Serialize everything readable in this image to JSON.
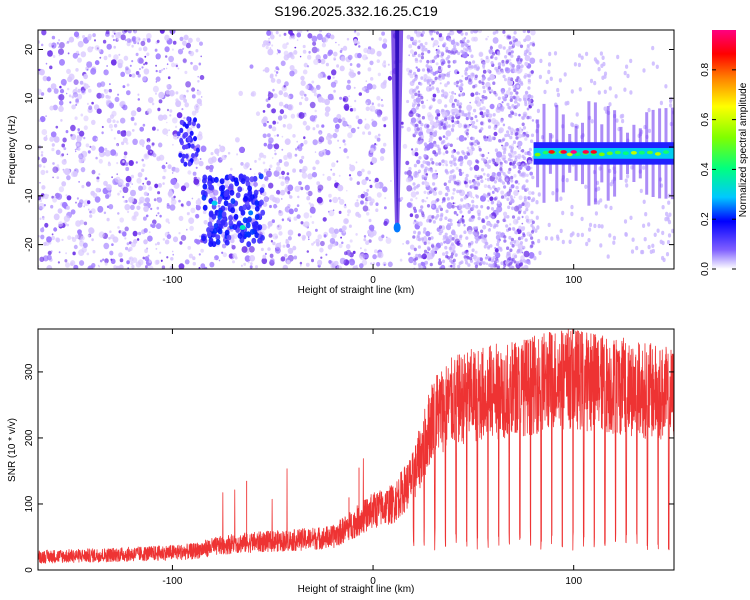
{
  "title": "S196.2025.332.16.25.C19",
  "chart_data": [
    {
      "type": "heatmap",
      "xlabel": "Height of straight line (km)",
      "ylabel": "Frequency (Hz)",
      "xlim": [
        -167,
        150
      ],
      "ylim": [
        -25,
        24
      ],
      "x_ticks": [
        -100,
        0,
        100
      ],
      "y_ticks": [
        -20,
        -10,
        0,
        10,
        20
      ],
      "colorbar": {
        "label": "Normalized spectral amplitude",
        "range": [
          0,
          0.96
        ],
        "ticks": [
          0,
          0.2,
          0.4,
          0.6,
          0.8
        ],
        "tick_labels": [
          "0.0",
          "0.2",
          "0.4",
          "0.6",
          "0.8"
        ]
      },
      "features": [
        {
          "kind": "background_speckle",
          "x_range": [
            -167,
            80
          ],
          "amplitude": 0.05
        },
        {
          "kind": "blank_strip",
          "x_range": [
            -85,
            -55
          ],
          "y_range": [
            0,
            24
          ]
        },
        {
          "kind": "vertical_trace",
          "x": 12,
          "y_range": [
            -17,
            24
          ],
          "peak": [
            12,
            -16.5
          ],
          "peak_amplitude": 0.25
        },
        {
          "kind": "cluster",
          "x": -70,
          "y": -13,
          "amplitude": 0.35
        },
        {
          "kind": "horizontal_line",
          "x_range": [
            80,
            150
          ],
          "y": -1.3,
          "amplitude": 0.55,
          "max_amplitude": 0.96,
          "max_at": [
            100,
            -1
          ]
        }
      ]
    },
    {
      "type": "line",
      "xlabel": "Height of straight line (km)",
      "ylabel": "SNR (10 * v/v)",
      "xlim": [
        -167,
        150
      ],
      "ylim": [
        0,
        365
      ],
      "x_ticks": [
        -100,
        0,
        100
      ],
      "y_ticks": [
        0,
        100,
        200,
        300
      ],
      "color": "#ee3333",
      "x": [
        -167,
        -140,
        -110,
        -90,
        -80,
        -70,
        -60,
        -40,
        -20,
        -10,
        0,
        10,
        20,
        25,
        30,
        40,
        50,
        60,
        70,
        80,
        90,
        100,
        110,
        120,
        130,
        140,
        150
      ],
      "y": [
        20,
        22,
        25,
        28,
        35,
        40,
        42,
        45,
        50,
        70,
        90,
        100,
        140,
        185,
        235,
        255,
        265,
        270,
        275,
        280,
        290,
        290,
        285,
        280,
        275,
        270,
        265
      ]
    }
  ]
}
